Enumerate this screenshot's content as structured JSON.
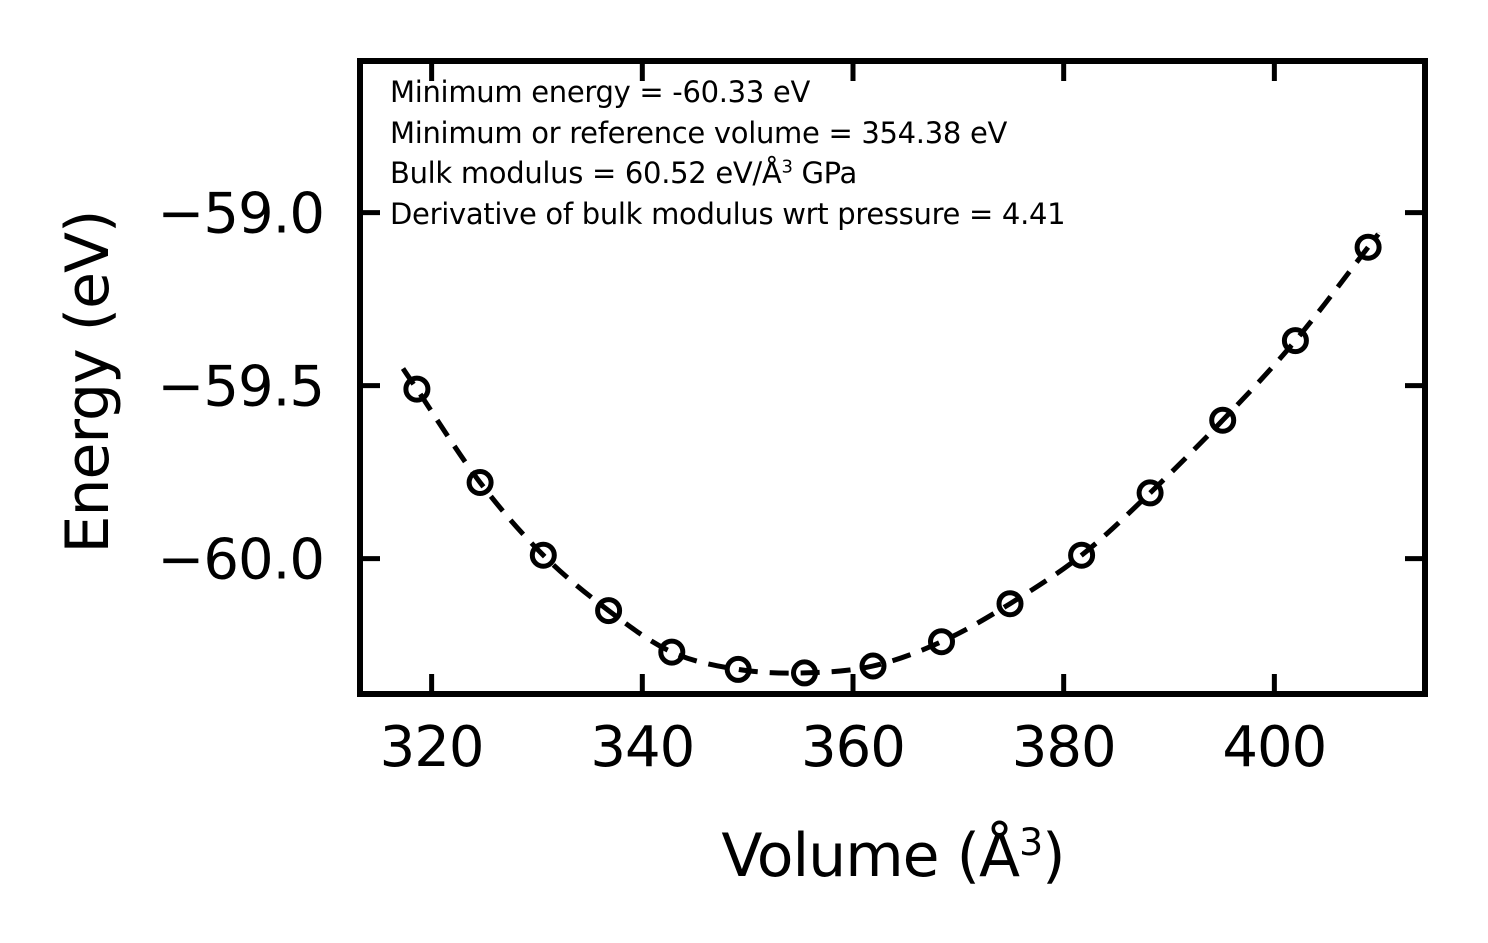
{
  "figure": {
    "background_color": "#ffffff",
    "line_color": "#000000",
    "annotation": {
      "line1": "Minimum energy = -60.33 eV",
      "line2": "Minimum or reference volume = 354.38 eV",
      "line3_prefix": "Bulk modulus = 60.52 eV/Å",
      "line3_sup": "3",
      "line3_suffix": " GPa",
      "line4": "Derivative of bulk modulus wrt pressure = 4.41"
    },
    "xlabel_prefix": "Volume (Å",
    "xlabel_sup": "3",
    "xlabel_suffix": ")",
    "ylabel": "Energy (eV)"
  },
  "chart_data": {
    "type": "scatter",
    "title": "",
    "xlabel": "Volume (Å^3)",
    "ylabel": "Energy (eV)",
    "xlim": [
      313.2,
      414.3
    ],
    "ylim": [
      -60.391,
      -58.562
    ],
    "grid": false,
    "legend": false,
    "ticks_direction": "in",
    "x_ticks": [
      320,
      340,
      360,
      380,
      400
    ],
    "x_tick_labels": [
      "320",
      "340",
      "360",
      "380",
      "400"
    ],
    "y_ticks": [
      -59.0,
      -59.5,
      -60.0
    ],
    "y_tick_labels": [
      "−59.0",
      "−59.5",
      "−60.0"
    ],
    "series": [
      {
        "name": "energy-volume data points",
        "type": "scatter",
        "marker": "open-circle",
        "color": "#000000",
        "x": [
          318.6,
          324.6,
          330.6,
          336.8,
          342.8,
          349.1,
          355.4,
          361.9,
          368.4,
          374.9,
          381.7,
          388.2,
          395.1,
          402.0,
          408.9
        ],
        "y": [
          -59.51,
          -59.78,
          -59.99,
          -60.15,
          -60.27,
          -60.32,
          -60.33,
          -60.31,
          -60.24,
          -60.13,
          -59.99,
          -59.81,
          -59.6,
          -59.37,
          -59.1
        ]
      },
      {
        "name": "equation-of-state fit",
        "type": "line",
        "style": "dashed",
        "color": "#000000",
        "note": "smooth fit curve drawn through the data points, extending slightly past both end points"
      }
    ],
    "fit_results": {
      "minimum_energy_eV": -60.33,
      "minimum_or_reference_volume": 354.38,
      "bulk_modulus": 60.52,
      "bulk_modulus_pressure_derivative": 4.41
    }
  }
}
